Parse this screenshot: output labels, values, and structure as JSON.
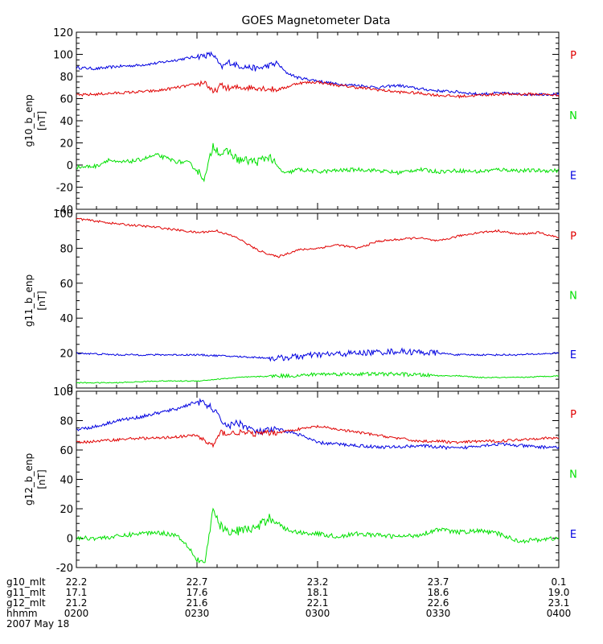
{
  "chart_data": {
    "type": "line",
    "title": "GOES Magnetometer Data",
    "colors": {
      "P": "#e00000",
      "N": "#00e000",
      "E": "#0000e0",
      "axis": "#000000"
    },
    "x": {
      "min": 0,
      "max": 120,
      "units": "minutes after 02:00 UT"
    },
    "components": [
      {
        "key": "P",
        "label": "P",
        "color": "#e00000"
      },
      {
        "key": "N",
        "label": "N",
        "color": "#00e000"
      },
      {
        "key": "E",
        "label": "E",
        "color": "#0000e0"
      }
    ],
    "panels": [
      {
        "ylabel_line1": "g10_b_enp",
        "ylabel_line2": "[nT]",
        "ylim": [
          -40,
          120
        ],
        "yticks": [
          -40,
          -20,
          0,
          20,
          40,
          60,
          80,
          100,
          120
        ],
        "series": [
          {
            "component": "E",
            "x": [
              0,
              5,
              10,
              15,
              20,
              25,
              30,
              32,
              34,
              36,
              38,
              40,
              45,
              50,
              52,
              55,
              60,
              65,
              70,
              75,
              80,
              85,
              90,
              95,
              100,
              105,
              110,
              115,
              120
            ],
            "y": [
              88,
              87,
              89,
              90,
              92,
              95,
              98,
              99,
              100,
              88,
              93,
              90,
              87,
              92,
              84,
              79,
              76,
              73,
              72,
              70,
              72,
              69,
              67,
              66,
              64,
              65,
              64,
              64,
              64
            ],
            "noise": 2.5
          },
          {
            "component": "P",
            "x": [
              0,
              5,
              10,
              15,
              20,
              25,
              30,
              32,
              34,
              36,
              38,
              40,
              45,
              50,
              52,
              55,
              60,
              65,
              70,
              75,
              80,
              85,
              90,
              95,
              100,
              105,
              110,
              115,
              120
            ],
            "y": [
              63,
              64,
              65,
              66,
              67,
              70,
              73,
              75,
              65,
              72,
              69,
              70,
              70,
              68,
              70,
              74,
              75,
              72,
              70,
              68,
              66,
              65,
              63,
              62,
              63,
              64,
              64,
              64,
              63
            ],
            "noise": 2.5
          },
          {
            "component": "N",
            "x": [
              0,
              5,
              8,
              10,
              15,
              20,
              25,
              28,
              30,
              32,
              34,
              36,
              38,
              40,
              45,
              48,
              50,
              52,
              55,
              60,
              65,
              70,
              75,
              80,
              85,
              90,
              95,
              100,
              105,
              110,
              115,
              120
            ],
            "y": [
              -2,
              -1,
              5,
              2,
              4,
              9,
              3,
              2,
              -5,
              -12,
              18,
              10,
              12,
              5,
              3,
              8,
              -2,
              -8,
              -4,
              -6,
              -5,
              -4,
              -5,
              -7,
              -4,
              -6,
              -5,
              -6,
              -4,
              -5,
              -5,
              -5
            ],
            "noise": 3.5
          }
        ]
      },
      {
        "ylabel_line1": "g11_b_enp",
        "ylabel_line2": "[nT]",
        "ylim": [
          0,
          100
        ],
        "yticks": [
          0,
          20,
          40,
          60,
          80,
          100
        ],
        "series": [
          {
            "component": "P",
            "x": [
              0,
              10,
              20,
              30,
              35,
              40,
              45,
              50,
              55,
              60,
              65,
              70,
              75,
              80,
              85,
              90,
              95,
              100,
              105,
              110,
              115,
              120
            ],
            "y": [
              97,
              94,
              92,
              89,
              90,
              86,
              79,
              75,
              79,
              80,
              82,
              80,
              84,
              85,
              86,
              84,
              87,
              89,
              90,
              88,
              89,
              86
            ],
            "noise": 1.2
          },
          {
            "component": "E",
            "x": [
              0,
              10,
              20,
              30,
              40,
              50,
              55,
              60,
              70,
              80,
              90,
              95,
              100,
              110,
              120
            ],
            "y": [
              20,
              19,
              19,
              19,
              18,
              17,
              18,
              19,
              20,
              21,
              20,
              19,
              19,
              19,
              20
            ],
            "noise": 1
          },
          {
            "component": "N",
            "x": [
              0,
              10,
              20,
              30,
              40,
              50,
              55,
              60,
              70,
              80,
              90,
              95,
              100,
              110,
              120
            ],
            "y": [
              3,
              3,
              4,
              4,
              6,
              7,
              7,
              8,
              8,
              8,
              7,
              7,
              6,
              6,
              7
            ],
            "noise": 0.6
          }
        ]
      },
      {
        "ylabel_line1": "g12_b_enp",
        "ylabel_line2": "[nT]",
        "ylim": [
          -20,
          100
        ],
        "yticks": [
          -20,
          0,
          20,
          40,
          60,
          80,
          100
        ],
        "series": [
          {
            "component": "E",
            "x": [
              0,
              5,
              10,
              15,
              20,
              25,
              30,
              32,
              34,
              36,
              38,
              40,
              45,
              50,
              55,
              60,
              65,
              70,
              75,
              80,
              85,
              90,
              95,
              100,
              105,
              110,
              115,
              120
            ],
            "y": [
              74,
              76,
              80,
              82,
              85,
              88,
              93,
              91,
              88,
              80,
              76,
              79,
              72,
              74,
              71,
              65,
              64,
              63,
              62,
              62,
              63,
              62,
              61,
              63,
              64,
              63,
              62,
              62
            ],
            "noise": 2.2
          },
          {
            "component": "P",
            "x": [
              0,
              5,
              10,
              15,
              20,
              25,
              30,
              32,
              34,
              36,
              38,
              40,
              45,
              50,
              55,
              60,
              65,
              70,
              75,
              80,
              85,
              90,
              95,
              100,
              105,
              110,
              115,
              120
            ],
            "y": [
              65,
              66,
              67,
              68,
              68,
              69,
              70,
              66,
              63,
              72,
              71,
              72,
              71,
              72,
              74,
              76,
              74,
              72,
              70,
              68,
              66,
              66,
              65,
              66,
              66,
              67,
              68,
              68
            ],
            "noise": 1.8
          },
          {
            "component": "N",
            "x": [
              0,
              5,
              10,
              15,
              20,
              25,
              28,
              30,
              32,
              34,
              36,
              38,
              40,
              45,
              48,
              50,
              52,
              55,
              60,
              65,
              70,
              75,
              80,
              85,
              90,
              95,
              100,
              105,
              110,
              115,
              120
            ],
            "y": [
              0,
              0,
              1,
              3,
              4,
              2,
              -6,
              -15,
              -16,
              18,
              8,
              3,
              5,
              7,
              14,
              11,
              6,
              4,
              3,
              1,
              3,
              2,
              1,
              2,
              6,
              4,
              5,
              3,
              -2,
              -1,
              0
            ],
            "noise": 3
          }
        ]
      }
    ],
    "x_rows": [
      {
        "label": "g10_mlt",
        "values": [
          "22.2",
          "22.7",
          "23.2",
          "23.7",
          "0.1"
        ]
      },
      {
        "label": "g11_mlt",
        "values": [
          "17.1",
          "17.6",
          "18.1",
          "18.6",
          "19.0"
        ]
      },
      {
        "label": "g12_mlt",
        "values": [
          "21.2",
          "21.6",
          "22.1",
          "22.6",
          "23.1"
        ]
      },
      {
        "label": "hhmm",
        "values": [
          "0200",
          "0230",
          "0300",
          "0330",
          "0400"
        ]
      }
    ],
    "date": "2007 May 18"
  }
}
